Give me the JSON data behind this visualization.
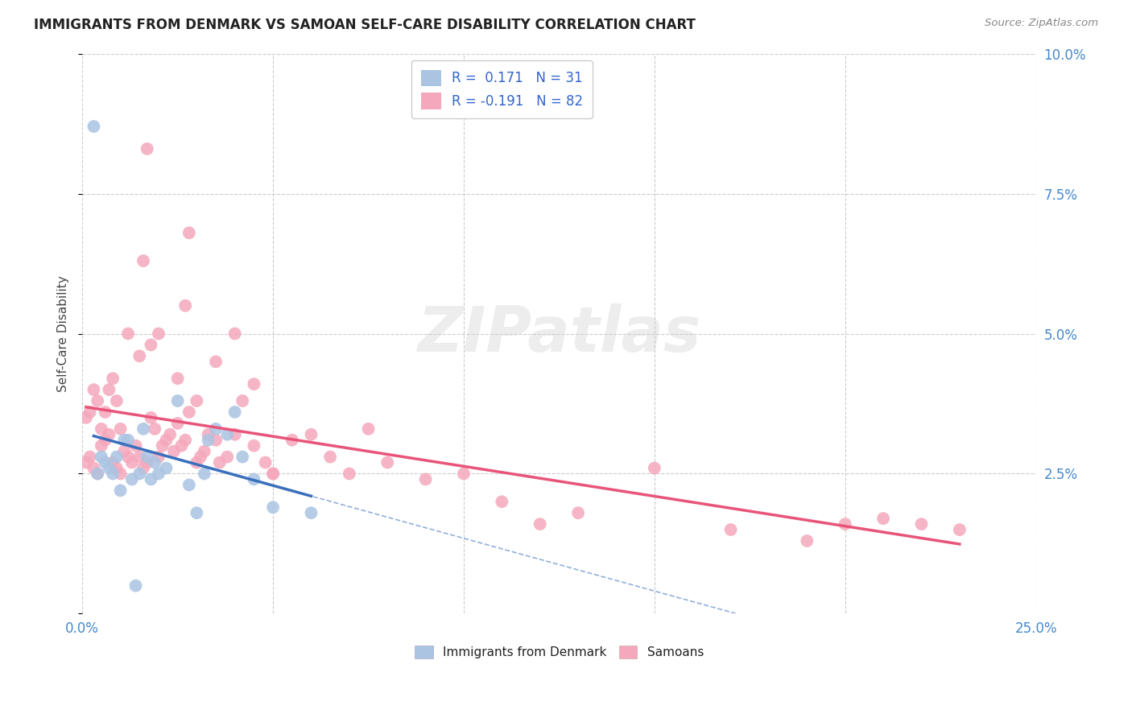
{
  "title": "IMMIGRANTS FROM DENMARK VS SAMOAN SELF-CARE DISABILITY CORRELATION CHART",
  "source": "Source: ZipAtlas.com",
  "ylabel": "Self-Care Disability",
  "xlim": [
    0.0,
    0.25
  ],
  "ylim": [
    0.0,
    0.1
  ],
  "x_ticks": [
    0.0,
    0.05,
    0.1,
    0.15,
    0.2,
    0.25
  ],
  "y_ticks": [
    0.0,
    0.025,
    0.05,
    0.075,
    0.1
  ],
  "legend_r1": "R =  0.171",
  "legend_n1": "N = 31",
  "legend_r2": "R = -0.191",
  "legend_n2": "N = 82",
  "color_denmark": "#aac4e2",
  "color_samoan": "#f5a8bc",
  "color_line_denmark": "#3a6fbd",
  "color_line_samoan": "#e8547a",
  "background_color": "#ffffff",
  "grid_color": "#cccccc",
  "denmark_x": [
    0.003,
    0.004,
    0.005,
    0.006,
    0.007,
    0.008,
    0.009,
    0.01,
    0.011,
    0.012,
    0.013,
    0.015,
    0.016,
    0.017,
    0.018,
    0.019,
    0.02,
    0.022,
    0.025,
    0.028,
    0.03,
    0.032,
    0.033,
    0.035,
    0.038,
    0.04,
    0.042,
    0.045,
    0.05,
    0.06,
    0.014
  ],
  "denmark_y": [
    0.087,
    0.025,
    0.028,
    0.027,
    0.026,
    0.025,
    0.028,
    0.022,
    0.031,
    0.031,
    0.024,
    0.025,
    0.033,
    0.028,
    0.024,
    0.027,
    0.025,
    0.026,
    0.038,
    0.023,
    0.018,
    0.025,
    0.031,
    0.033,
    0.032,
    0.036,
    0.028,
    0.024,
    0.019,
    0.018,
    0.005
  ],
  "samoan_x": [
    0.001,
    0.002,
    0.003,
    0.004,
    0.005,
    0.006,
    0.007,
    0.008,
    0.009,
    0.01,
    0.011,
    0.012,
    0.013,
    0.014,
    0.015,
    0.016,
    0.017,
    0.018,
    0.019,
    0.02,
    0.021,
    0.022,
    0.023,
    0.024,
    0.025,
    0.026,
    0.027,
    0.028,
    0.03,
    0.031,
    0.032,
    0.033,
    0.035,
    0.036,
    0.038,
    0.04,
    0.042,
    0.045,
    0.048,
    0.05,
    0.055,
    0.06,
    0.065,
    0.07,
    0.075,
    0.08,
    0.09,
    0.1,
    0.11,
    0.12,
    0.13,
    0.15,
    0.17,
    0.19,
    0.2,
    0.21,
    0.22,
    0.23,
    0.001,
    0.002,
    0.003,
    0.004,
    0.005,
    0.006,
    0.007,
    0.008,
    0.009,
    0.01,
    0.012,
    0.015,
    0.018,
    0.02,
    0.025,
    0.03,
    0.035,
    0.04,
    0.045,
    0.05,
    0.016,
    0.017,
    0.027,
    0.028
  ],
  "samoan_y": [
    0.027,
    0.028,
    0.026,
    0.025,
    0.03,
    0.031,
    0.032,
    0.027,
    0.026,
    0.025,
    0.029,
    0.028,
    0.027,
    0.03,
    0.028,
    0.026,
    0.027,
    0.035,
    0.033,
    0.028,
    0.03,
    0.031,
    0.032,
    0.029,
    0.034,
    0.03,
    0.031,
    0.036,
    0.027,
    0.028,
    0.029,
    0.032,
    0.031,
    0.027,
    0.028,
    0.032,
    0.038,
    0.03,
    0.027,
    0.025,
    0.031,
    0.032,
    0.028,
    0.025,
    0.033,
    0.027,
    0.024,
    0.025,
    0.02,
    0.016,
    0.018,
    0.026,
    0.015,
    0.013,
    0.016,
    0.017,
    0.016,
    0.015,
    0.035,
    0.036,
    0.04,
    0.038,
    0.033,
    0.036,
    0.04,
    0.042,
    0.038,
    0.033,
    0.05,
    0.046,
    0.048,
    0.05,
    0.042,
    0.038,
    0.045,
    0.05,
    0.041,
    0.025,
    0.063,
    0.083,
    0.055,
    0.068
  ]
}
